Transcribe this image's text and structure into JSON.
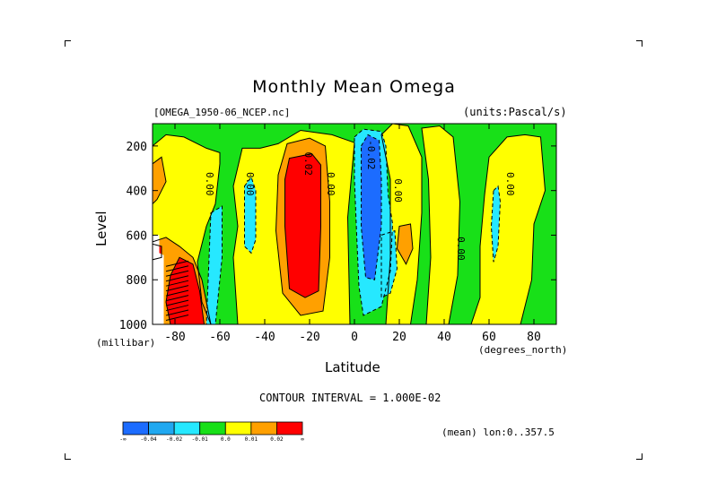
{
  "chart_data": {
    "type": "heatmap",
    "title": "Monthly Mean Omega",
    "dataset": "[OMEGA_1950-06_NCEP.nc]",
    "units": "(units:Pascal/s)",
    "xlabel": "Latitude",
    "xunits": "(degrees_north)",
    "ylabel": "Level",
    "yunits": "(millibar)",
    "xlim": [
      -90,
      90
    ],
    "ylim": [
      1000,
      100
    ],
    "x_ticks": [
      "-80",
      "-60",
      "-40",
      "-20",
      "0",
      "20",
      "40",
      "60",
      "80"
    ],
    "x_tick_values": [
      -80,
      -60,
      -40,
      -20,
      0,
      20,
      40,
      60,
      80
    ],
    "y_ticks": [
      "200",
      "400",
      "600",
      "800",
      "1000"
    ],
    "y_tick_values": [
      200,
      400,
      600,
      800,
      1000
    ],
    "contour_interval": "CONTOUR INTERVAL = 1.000E-02",
    "footer": "(mean) lon:0..357.5",
    "contour_labels": [
      {
        "text": "0.00",
        "lat": -66,
        "level": 370
      },
      {
        "text": "0.00",
        "lat": -48,
        "level": 370
      },
      {
        "text": "0.02",
        "lat": -22,
        "level": 280
      },
      {
        "text": "0.00",
        "lat": -12,
        "level": 370
      },
      {
        "text": "-0.02",
        "lat": 6,
        "level": 240
      },
      {
        "text": "0.00",
        "lat": 18,
        "level": 400
      },
      {
        "text": "0.00",
        "lat": 46,
        "level": 660
      },
      {
        "text": "0.00",
        "lat": 68,
        "level": 370
      }
    ],
    "legend": {
      "colors": [
        "#1c6cff",
        "#20a8f0",
        "#26e8ff",
        "#18e018",
        "#ffff00",
        "#ffa000",
        "#ff0000"
      ],
      "labels": [
        "-∞",
        "-0.04",
        "-0.02",
        "-0.01",
        "0.0",
        "0.01",
        "0.02",
        "∞"
      ]
    },
    "regions": [
      {
        "level": "green",
        "points": [
          [
            -90,
            100
          ],
          [
            90,
            100
          ],
          [
            90,
            1000
          ],
          [
            -90,
            1000
          ]
        ]
      },
      {
        "level": "yellow",
        "points": [
          [
            -90,
            200
          ],
          [
            -84,
            150
          ],
          [
            -76,
            160
          ],
          [
            -66,
            210
          ],
          [
            -60,
            230
          ],
          [
            -60,
            280
          ],
          [
            -62,
            460
          ],
          [
            -66,
            560
          ],
          [
            -70,
            720
          ],
          [
            -68,
            900
          ],
          [
            -64,
            1000
          ],
          [
            -90,
            1000
          ]
        ]
      },
      {
        "level": "yellow",
        "points": [
          [
            -50,
            210
          ],
          [
            -42,
            210
          ],
          [
            -34,
            190
          ],
          [
            -24,
            130
          ],
          [
            -10,
            150
          ],
          [
            0,
            185
          ],
          [
            -3,
            520
          ],
          [
            -2,
            1000
          ],
          [
            -52,
            1000
          ],
          [
            -54,
            700
          ],
          [
            -52,
            560
          ],
          [
            -54,
            380
          ]
        ]
      },
      {
        "level": "yellow",
        "points": [
          [
            17,
            100
          ],
          [
            24,
            110
          ],
          [
            30,
            250
          ],
          [
            30,
            500
          ],
          [
            28,
            800
          ],
          [
            25,
            1000
          ],
          [
            14,
            1000
          ],
          [
            16,
            700
          ],
          [
            16,
            350
          ],
          [
            12,
            150
          ]
        ]
      },
      {
        "level": "yellow",
        "points": [
          [
            30,
            120
          ],
          [
            38,
            110
          ],
          [
            44,
            160
          ],
          [
            47,
            450
          ],
          [
            46,
            780
          ],
          [
            42,
            1000
          ],
          [
            32,
            1000
          ],
          [
            34,
            700
          ],
          [
            33,
            350
          ]
        ]
      },
      {
        "level": "yellow",
        "points": [
          [
            60,
            250
          ],
          [
            68,
            160
          ],
          [
            76,
            150
          ],
          [
            83,
            160
          ],
          [
            85,
            400
          ],
          [
            80,
            550
          ],
          [
            79,
            800
          ],
          [
            74,
            1000
          ],
          [
            52,
            1000
          ],
          [
            56,
            880
          ],
          [
            56,
            650
          ],
          [
            58,
            420
          ]
        ]
      },
      {
        "level": "orange",
        "points": [
          [
            -90,
            630
          ],
          [
            -84,
            610
          ],
          [
            -78,
            650
          ],
          [
            -72,
            700
          ],
          [
            -68,
            800
          ],
          [
            -66,
            900
          ],
          [
            -64,
            1000
          ],
          [
            -90,
            1000
          ]
        ]
      },
      {
        "level": "orange",
        "points": [
          [
            -90,
            280
          ],
          [
            -86,
            250
          ],
          [
            -84,
            360
          ],
          [
            -88,
            440
          ],
          [
            -90,
            460
          ]
        ]
      },
      {
        "level": "red",
        "points": [
          [
            -82,
            780
          ],
          [
            -78,
            700
          ],
          [
            -72,
            730
          ],
          [
            -69,
            850
          ],
          [
            -67,
            1000
          ],
          [
            -82,
            1000
          ],
          [
            -84,
            900
          ]
        ]
      },
      {
        "level": "red",
        "points": [
          [
            -90,
            640
          ],
          [
            -86,
            650
          ],
          [
            -86,
            700
          ],
          [
            -90,
            710
          ]
        ]
      },
      {
        "level": "orange",
        "points": [
          [
            -30,
            190
          ],
          [
            -20,
            165
          ],
          [
            -13,
            200
          ],
          [
            -11,
            450
          ],
          [
            -11,
            700
          ],
          [
            -14,
            940
          ],
          [
            -24,
            960
          ],
          [
            -32,
            860
          ],
          [
            -35,
            580
          ],
          [
            -34,
            330
          ]
        ]
      },
      {
        "level": "red",
        "points": [
          [
            -29,
            255
          ],
          [
            -19,
            235
          ],
          [
            -15,
            285
          ],
          [
            -15,
            560
          ],
          [
            -16,
            850
          ],
          [
            -22,
            880
          ],
          [
            -29,
            840
          ],
          [
            -31,
            560
          ],
          [
            -31,
            350
          ]
        ]
      },
      {
        "level": "orange",
        "points": [
          [
            20,
            560
          ],
          [
            25,
            550
          ],
          [
            26,
            660
          ],
          [
            23,
            730
          ],
          [
            19,
            660
          ]
        ]
      },
      {
        "level": "cyan",
        "points": [
          [
            0,
            160
          ],
          [
            4,
            125
          ],
          [
            12,
            135
          ],
          [
            14,
            200
          ],
          [
            15,
            420
          ],
          [
            17,
            550
          ],
          [
            16,
            760
          ],
          [
            12,
            920
          ],
          [
            4,
            960
          ],
          [
            2,
            830
          ],
          [
            1,
            600
          ],
          [
            0,
            350
          ]
        ]
      },
      {
        "level": "blue",
        "points": [
          [
            3,
            200
          ],
          [
            6,
            150
          ],
          [
            11,
            175
          ],
          [
            12,
            350
          ],
          [
            12,
            560
          ],
          [
            9,
            800
          ],
          [
            5,
            790
          ],
          [
            3,
            560
          ]
        ]
      },
      {
        "level": "cyan",
        "points": [
          [
            -49,
            380
          ],
          [
            -46,
            340
          ],
          [
            -44,
            400
          ],
          [
            -44,
            620
          ],
          [
            -46,
            680
          ],
          [
            -49,
            650
          ]
        ]
      },
      {
        "level": "cyan",
        "points": [
          [
            -64,
            500
          ],
          [
            -59,
            470
          ],
          [
            -59,
            700
          ],
          [
            -61,
            900
          ],
          [
            -62,
            1000
          ],
          [
            -66,
            1000
          ],
          [
            -65,
            750
          ]
        ]
      },
      {
        "level": "cyan",
        "points": [
          [
            12,
            600
          ],
          [
            18,
            580
          ],
          [
            19,
            750
          ],
          [
            16,
            860
          ],
          [
            12,
            880
          ]
        ]
      },
      {
        "level": "cyan",
        "points": [
          [
            62,
            400
          ],
          [
            64,
            380
          ],
          [
            65,
            450
          ],
          [
            64,
            650
          ],
          [
            62,
            720
          ],
          [
            61,
            560
          ]
        ]
      },
      {
        "level": "white",
        "points": [
          [
            -90,
            600
          ],
          [
            -87,
            600
          ],
          [
            -87,
            680
          ],
          [
            -85,
            690
          ],
          [
            -85,
            1000
          ],
          [
            -90,
            1000
          ]
        ]
      }
    ]
  }
}
